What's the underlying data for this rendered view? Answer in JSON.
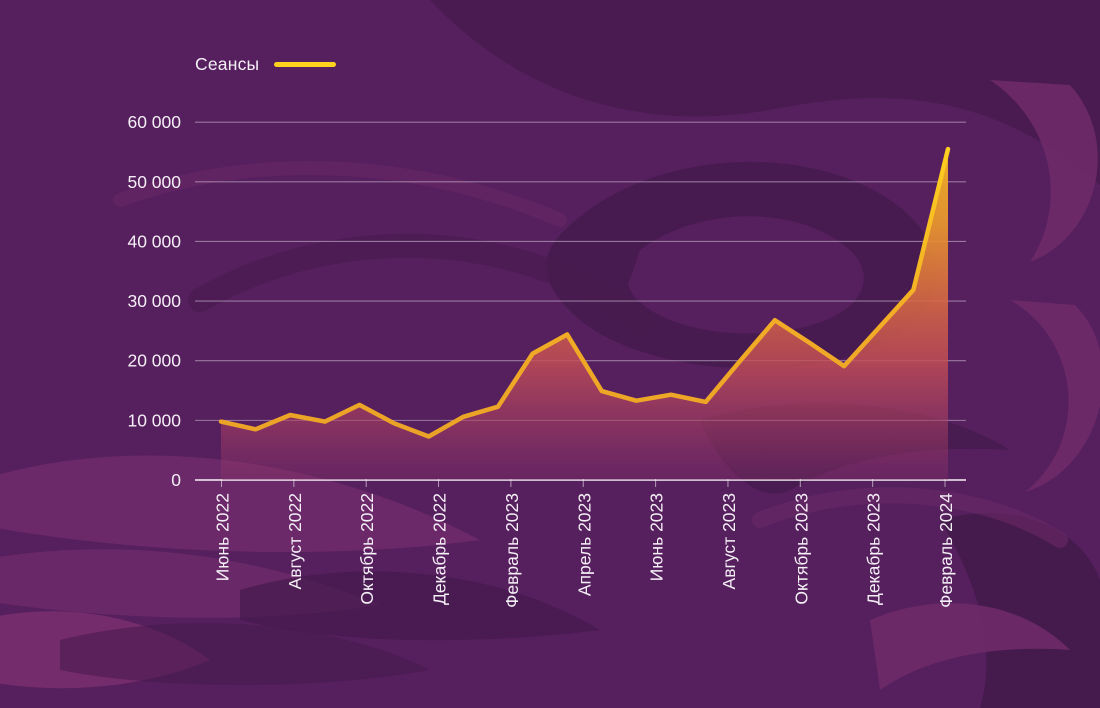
{
  "colors": {
    "background": "#561f5e",
    "accent_yellow": "#ffd21e",
    "line_gold_top": "#ffd41f",
    "line_gold_bottom": "#e89f28",
    "grid_line": "#ddd2e4",
    "axis_line": "#ffffff",
    "label_text": "#f5eff7"
  },
  "legend": {
    "label": "Сеансы"
  },
  "chart_data": {
    "type": "line",
    "title": "",
    "legend_entries": [
      "Сеансы"
    ],
    "legend_position": "top-left",
    "grid": "horizontal-only",
    "x_range": [
      "Июнь 2022",
      "Февраль 2024"
    ],
    "x_tick_labels": [
      "Июнь 2022",
      "Август 2022",
      "Октябрь 2022",
      "Декабрь 2022",
      "Февраль 2023",
      "Апрель 2023",
      "Июнь 2023",
      "Август 2023",
      "Октябрь 2023",
      "Декабрь 2023",
      "Февраль 2024"
    ],
    "y_tick_labels": [
      "0",
      "10 000",
      "20 000",
      "30 000",
      "40 000",
      "50 000",
      "60 000"
    ],
    "ylim": [
      0,
      60000
    ],
    "y_step": 10000,
    "series": [
      {
        "name": "Сеансы",
        "values": [
          9800,
          8500,
          10900,
          9800,
          12600,
          9500,
          7300,
          10600,
          12300,
          21200,
          24400,
          14900,
          13300,
          14300,
          13100,
          20000,
          26800,
          23000,
          19100,
          25500,
          31900,
          55500
        ]
      }
    ],
    "style_notes": "yellow-gold line with vertical gold-to-crimson gradient area fill on purple graffiti background"
  }
}
